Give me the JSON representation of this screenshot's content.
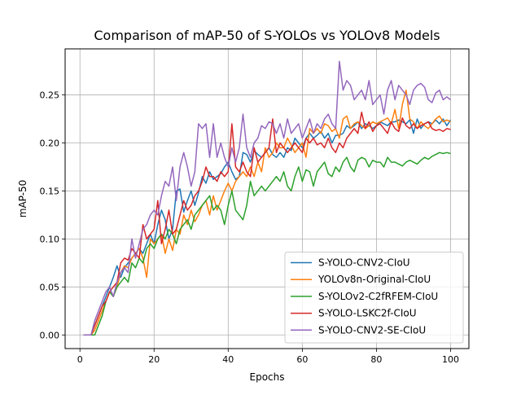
{
  "chart_data": {
    "type": "line",
    "title": "Comparison of mAP-50 of S-YOLOs vs YOLOv8 Models",
    "xlabel": "Epochs",
    "ylabel": "mAP-50",
    "xlim": [
      -4.0,
      104.95
    ],
    "ylim": [
      -0.0142,
      0.298
    ],
    "xticks": [
      0,
      20,
      40,
      60,
      80,
      100
    ],
    "yticks": [
      0.0,
      0.05,
      0.1,
      0.15,
      0.2,
      0.25
    ],
    "xtick_labels": [
      "0",
      "20",
      "40",
      "60",
      "80",
      "100"
    ],
    "ytick_labels": [
      "0.00",
      "0.05",
      "0.10",
      "0.15",
      "0.20",
      "0.25"
    ],
    "grid": true,
    "legend_position": "lower-right",
    "series": [
      {
        "name": "S-YOLO-CNV2-CIoU",
        "color": "#1f77b4",
        "x": [
          1,
          2,
          3,
          4,
          5,
          6,
          7,
          8,
          9,
          10,
          11,
          12,
          13,
          14,
          15,
          16,
          17,
          18,
          19,
          20,
          21,
          22,
          23,
          24,
          25,
          26,
          27,
          28,
          29,
          30,
          31,
          32,
          33,
          34,
          35,
          36,
          37,
          38,
          39,
          40,
          41,
          42,
          43,
          44,
          45,
          46,
          47,
          48,
          49,
          50,
          51,
          52,
          53,
          54,
          55,
          56,
          57,
          58,
          59,
          60,
          61,
          62,
          63,
          64,
          65,
          66,
          67,
          68,
          69,
          70,
          71,
          72,
          73,
          74,
          75,
          76,
          77,
          78,
          79,
          80,
          81,
          82,
          83,
          84,
          85,
          86,
          87,
          88,
          89,
          90,
          91,
          92,
          93,
          94,
          95,
          96,
          97,
          98,
          99,
          100
        ],
        "y": [
          0,
          0,
          0,
          0.01,
          0.02,
          0.03,
          0.04,
          0.05,
          0.06,
          0.072,
          0.06,
          0.07,
          0.075,
          0.08,
          0.085,
          0.09,
          0.085,
          0.095,
          0.105,
          0.095,
          0.115,
          0.13,
          0.12,
          0.1,
          0.11,
          0.15,
          0.152,
          0.128,
          0.14,
          0.15,
          0.135,
          0.148,
          0.165,
          0.158,
          0.17,
          0.162,
          0.165,
          0.168,
          0.175,
          0.18,
          0.17,
          0.162,
          0.165,
          0.19,
          0.188,
          0.18,
          0.192,
          0.188,
          0.185,
          0.19,
          0.195,
          0.188,
          0.185,
          0.19,
          0.185,
          0.195,
          0.192,
          0.205,
          0.2,
          0.195,
          0.205,
          0.21,
          0.205,
          0.208,
          0.212,
          0.205,
          0.21,
          0.2,
          0.208,
          0.208,
          0.21,
          0.218,
          0.215,
          0.218,
          0.222,
          0.215,
          0.22,
          0.218,
          0.215,
          0.218,
          0.222,
          0.22,
          0.218,
          0.222,
          0.222,
          0.224,
          0.222,
          0.22,
          0.224,
          0.21,
          0.225,
          0.215,
          0.22,
          0.222,
          0.22,
          0.224,
          0.22,
          0.225,
          0.218,
          0.224
        ]
      },
      {
        "name": "YOLOv8n-Original-CIoU",
        "color": "#ff7f0e",
        "x": [
          1,
          2,
          3,
          4,
          5,
          6,
          7,
          8,
          9,
          10,
          11,
          12,
          13,
          14,
          15,
          16,
          17,
          18,
          19,
          20,
          21,
          22,
          23,
          24,
          25,
          26,
          27,
          28,
          29,
          30,
          31,
          32,
          33,
          34,
          35,
          36,
          37,
          38,
          39,
          40,
          41,
          42,
          43,
          44,
          45,
          46,
          47,
          48,
          49,
          50,
          51,
          52,
          53,
          54,
          55,
          56,
          57,
          58,
          59,
          60,
          61,
          62,
          63,
          64,
          65,
          66,
          67,
          68,
          69,
          70,
          71,
          72,
          73,
          74,
          75,
          76,
          77,
          78,
          79,
          80,
          81,
          82,
          83,
          84,
          85,
          86,
          87,
          88,
          89,
          90,
          91,
          92,
          93,
          94,
          95,
          96,
          97,
          98,
          99,
          100
        ],
        "y": [
          0,
          0,
          0,
          0.005,
          0.015,
          0.025,
          0.035,
          0.045,
          0.04,
          0.05,
          0.065,
          0.072,
          0.07,
          0.08,
          0.085,
          0.09,
          0.08,
          0.06,
          0.1,
          0.095,
          0.1,
          0.105,
          0.085,
          0.1,
          0.088,
          0.11,
          0.105,
          0.125,
          0.115,
          0.13,
          0.118,
          0.125,
          0.135,
          0.14,
          0.125,
          0.145,
          0.13,
          0.14,
          0.15,
          0.158,
          0.15,
          0.16,
          0.165,
          0.17,
          0.165,
          0.175,
          0.165,
          0.18,
          0.17,
          0.195,
          0.185,
          0.19,
          0.2,
          0.195,
          0.195,
          0.205,
          0.198,
          0.19,
          0.195,
          0.2,
          0.185,
          0.215,
          0.21,
          0.215,
          0.21,
          0.22,
          0.218,
          0.212,
          0.215,
          0.205,
          0.225,
          0.228,
          0.215,
          0.22,
          0.222,
          0.218,
          0.215,
          0.218,
          0.222,
          0.22,
          0.222,
          0.224,
          0.226,
          0.22,
          0.235,
          0.215,
          0.24,
          0.255,
          0.225,
          0.222,
          0.215,
          0.222,
          0.218,
          0.215,
          0.22,
          0.225,
          0.228,
          0.222,
          0.224,
          0.222
        ]
      },
      {
        "name": "S-YOLOv2-C2fRFEM-CIoU",
        "color": "#2ca02c",
        "x": [
          1,
          2,
          3,
          4,
          5,
          6,
          7,
          8,
          9,
          10,
          11,
          12,
          13,
          14,
          15,
          16,
          17,
          18,
          19,
          20,
          21,
          22,
          23,
          24,
          25,
          26,
          27,
          28,
          29,
          30,
          31,
          32,
          33,
          34,
          35,
          36,
          37,
          38,
          39,
          40,
          41,
          42,
          43,
          44,
          45,
          46,
          47,
          48,
          49,
          50,
          51,
          52,
          53,
          54,
          55,
          56,
          57,
          58,
          59,
          60,
          61,
          62,
          63,
          64,
          65,
          66,
          67,
          68,
          69,
          70,
          71,
          72,
          73,
          74,
          75,
          76,
          77,
          78,
          79,
          80,
          81,
          82,
          83,
          84,
          85,
          86,
          87,
          88,
          89,
          90,
          91,
          92,
          93,
          94,
          95,
          96,
          97,
          98,
          99,
          100
        ],
        "y": [
          0,
          0,
          0,
          0,
          0.01,
          0.02,
          0.035,
          0.045,
          0.04,
          0.05,
          0.055,
          0.06,
          0.055,
          0.075,
          0.07,
          0.08,
          0.075,
          0.09,
          0.095,
          0.09,
          0.1,
          0.105,
          0.1,
          0.11,
          0.105,
          0.095,
          0.11,
          0.115,
          0.12,
          0.11,
          0.125,
          0.13,
          0.135,
          0.14,
          0.145,
          0.13,
          0.135,
          0.13,
          0.115,
          0.135,
          0.15,
          0.13,
          0.125,
          0.12,
          0.135,
          0.16,
          0.145,
          0.15,
          0.155,
          0.15,
          0.155,
          0.16,
          0.165,
          0.16,
          0.17,
          0.155,
          0.15,
          0.165,
          0.175,
          0.16,
          0.172,
          0.17,
          0.155,
          0.17,
          0.175,
          0.18,
          0.168,
          0.165,
          0.175,
          0.17,
          0.18,
          0.185,
          0.175,
          0.17,
          0.182,
          0.185,
          0.183,
          0.175,
          0.182,
          0.18,
          0.18,
          0.175,
          0.185,
          0.18,
          0.18,
          0.178,
          0.176,
          0.18,
          0.182,
          0.18,
          0.178,
          0.182,
          0.185,
          0.183,
          0.186,
          0.188,
          0.19,
          0.189,
          0.19,
          0.189
        ]
      },
      {
        "name": "S-YOLO-LSKC2f-CIoU",
        "color": "#d62728",
        "x": [
          1,
          2,
          3,
          4,
          5,
          6,
          7,
          8,
          9,
          10,
          11,
          12,
          13,
          14,
          15,
          16,
          17,
          18,
          19,
          20,
          21,
          22,
          23,
          24,
          25,
          26,
          27,
          28,
          29,
          30,
          31,
          32,
          33,
          34,
          35,
          36,
          37,
          38,
          39,
          40,
          41,
          42,
          43,
          44,
          45,
          46,
          47,
          48,
          49,
          50,
          51,
          52,
          53,
          54,
          55,
          56,
          57,
          58,
          59,
          60,
          61,
          62,
          63,
          64,
          65,
          66,
          67,
          68,
          69,
          70,
          71,
          72,
          73,
          74,
          75,
          76,
          77,
          78,
          79,
          80,
          81,
          82,
          83,
          84,
          85,
          86,
          87,
          88,
          89,
          90,
          91,
          92,
          93,
          94,
          95,
          96,
          97,
          98,
          99,
          100
        ],
        "y": [
          0,
          0,
          0,
          0.01,
          0.02,
          0.03,
          0.035,
          0.045,
          0.05,
          0.055,
          0.075,
          0.08,
          0.078,
          0.09,
          0.085,
          0.08,
          0.115,
          0.1,
          0.105,
          0.11,
          0.14,
          0.095,
          0.11,
          0.13,
          0.105,
          0.11,
          0.125,
          0.14,
          0.13,
          0.135,
          0.145,
          0.15,
          0.16,
          0.175,
          0.165,
          0.165,
          0.16,
          0.17,
          0.165,
          0.17,
          0.22,
          0.175,
          0.17,
          0.18,
          0.17,
          0.165,
          0.195,
          0.18,
          0.185,
          0.19,
          0.195,
          0.225,
          0.19,
          0.2,
          0.195,
          0.19,
          0.195,
          0.2,
          0.195,
          0.19,
          0.205,
          0.2,
          0.205,
          0.198,
          0.2,
          0.195,
          0.205,
          0.195,
          0.19,
          0.2,
          0.195,
          0.205,
          0.21,
          0.215,
          0.21,
          0.232,
          0.215,
          0.222,
          0.212,
          0.218,
          0.22,
          0.215,
          0.21,
          0.222,
          0.215,
          0.212,
          0.226,
          0.218,
          0.215,
          0.22,
          0.215,
          0.218,
          0.22,
          0.222,
          0.215,
          0.213,
          0.214,
          0.212,
          0.215,
          0.214
        ]
      },
      {
        "name": "S-YOLO-CNV2-SE-CIoU",
        "color": "#9467bd",
        "x": [
          1,
          2,
          3,
          4,
          5,
          6,
          7,
          8,
          9,
          10,
          11,
          12,
          13,
          14,
          15,
          16,
          17,
          18,
          19,
          20,
          21,
          22,
          23,
          24,
          25,
          26,
          27,
          28,
          29,
          30,
          31,
          32,
          33,
          34,
          35,
          36,
          37,
          38,
          39,
          40,
          41,
          42,
          43,
          44,
          45,
          46,
          47,
          48,
          49,
          50,
          51,
          52,
          53,
          54,
          55,
          56,
          57,
          58,
          59,
          60,
          61,
          62,
          63,
          64,
          65,
          66,
          67,
          68,
          69,
          70,
          71,
          72,
          73,
          74,
          75,
          76,
          77,
          78,
          79,
          80,
          81,
          82,
          83,
          84,
          85,
          86,
          87,
          88,
          89,
          90,
          91,
          92,
          93,
          94,
          95,
          96,
          97,
          98,
          99,
          100
        ],
        "y": [
          0,
          0,
          0,
          0.015,
          0.025,
          0.035,
          0.045,
          0.05,
          0.04,
          0.055,
          0.065,
          0.07,
          0.065,
          0.1,
          0.08,
          0.095,
          0.11,
          0.115,
          0.125,
          0.13,
          0.125,
          0.145,
          0.16,
          0.155,
          0.175,
          0.14,
          0.175,
          0.19,
          0.175,
          0.155,
          0.17,
          0.22,
          0.215,
          0.22,
          0.185,
          0.22,
          0.185,
          0.2,
          0.185,
          0.175,
          0.195,
          0.18,
          0.195,
          0.23,
          0.195,
          0.185,
          0.2,
          0.205,
          0.218,
          0.215,
          0.222,
          0.22,
          0.21,
          0.22,
          0.205,
          0.225,
          0.21,
          0.215,
          0.22,
          0.205,
          0.215,
          0.225,
          0.21,
          0.22,
          0.215,
          0.225,
          0.23,
          0.22,
          0.215,
          0.285,
          0.255,
          0.265,
          0.26,
          0.245,
          0.25,
          0.255,
          0.245,
          0.265,
          0.24,
          0.245,
          0.25,
          0.23,
          0.255,
          0.265,
          0.245,
          0.26,
          0.255,
          0.25,
          0.24,
          0.255,
          0.26,
          0.262,
          0.258,
          0.245,
          0.242,
          0.252,
          0.255,
          0.245,
          0.248,
          0.245
        ]
      }
    ]
  }
}
